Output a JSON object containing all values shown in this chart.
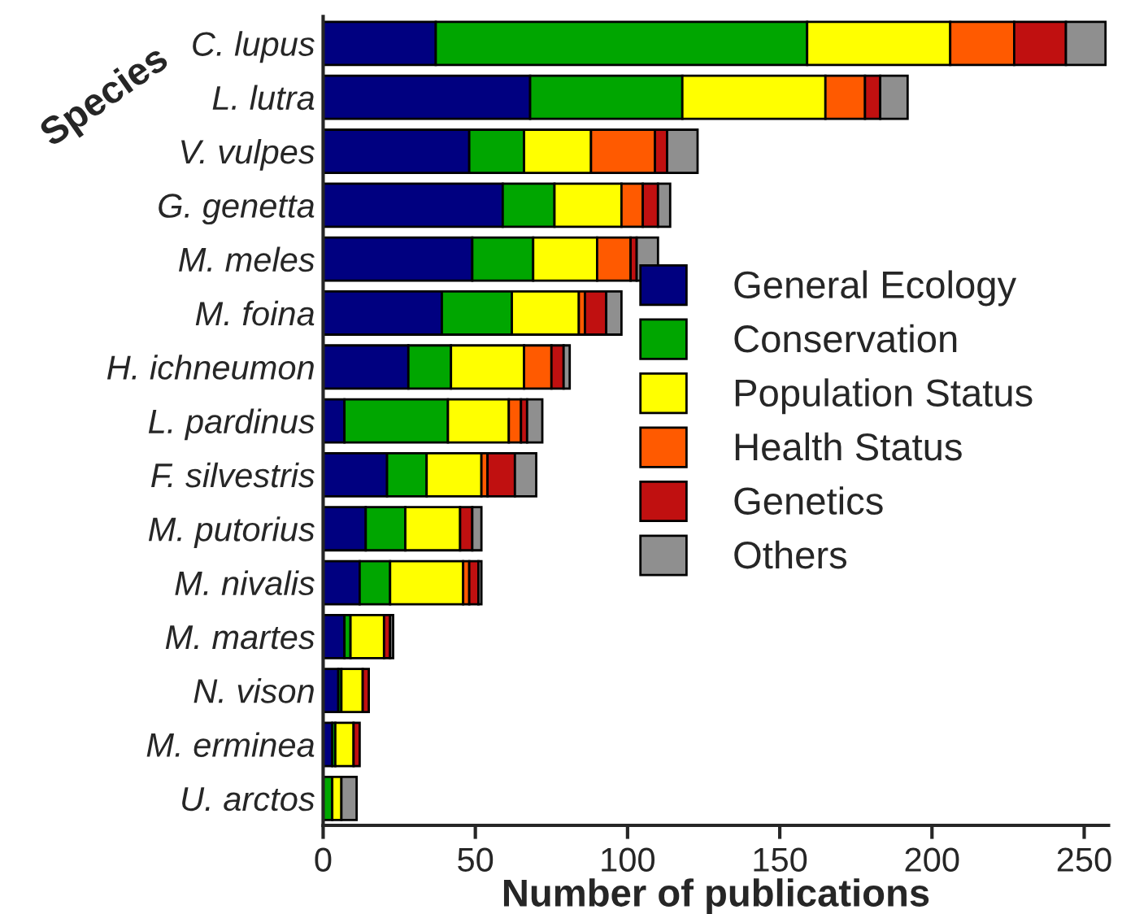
{
  "chart_data": {
    "type": "bar",
    "orientation": "horizontal",
    "stacked": true,
    "xlabel": "Number of publications",
    "ylabel": "Species",
    "categories": [
      "C. lupus",
      "L. lutra",
      "V. vulpes",
      "G. genetta",
      "M. meles",
      "M. foina",
      "H. ichneumon",
      "L. pardinus",
      "F. silvestris",
      "M. putorius",
      "M. nivalis",
      "M. martes",
      "N. vison",
      "M. erminea",
      "U. arctos"
    ],
    "series": [
      {
        "name": "General Ecology",
        "color": "#000080",
        "values": [
          37,
          68,
          48,
          59,
          49,
          39,
          28,
          7,
          21,
          14,
          12,
          7,
          5,
          3,
          0
        ]
      },
      {
        "name": "Conservation",
        "color": "#00a600",
        "values": [
          122,
          50,
          18,
          17,
          20,
          23,
          14,
          34,
          13,
          13,
          10,
          2,
          1,
          1,
          3
        ]
      },
      {
        "name": "Population Status",
        "color": "#ffff00",
        "values": [
          47,
          47,
          22,
          22,
          21,
          22,
          24,
          20,
          18,
          18,
          24,
          11,
          7,
          6,
          3
        ]
      },
      {
        "name": "Health Status",
        "color": "#ff5a00",
        "values": [
          21,
          13,
          21,
          7,
          11,
          2,
          9,
          4,
          2,
          0,
          2,
          null,
          0,
          0,
          0
        ]
      },
      {
        "name": "Genetics",
        "color": "#c01010",
        "values": [
          17,
          5,
          4,
          5,
          2,
          7,
          4,
          2,
          9,
          4,
          3,
          2,
          2,
          2,
          0
        ]
      },
      {
        "name": "Others",
        "color": "#8f8f8f",
        "values": [
          13,
          9,
          10,
          4,
          7,
          5,
          2,
          5,
          7,
          3,
          1,
          1,
          0,
          0,
          5
        ]
      }
    ],
    "xlim": [
      0,
      258
    ],
    "xticks": [
      0,
      50,
      100,
      150,
      200,
      250
    ],
    "grid": false,
    "legend": "right"
  }
}
